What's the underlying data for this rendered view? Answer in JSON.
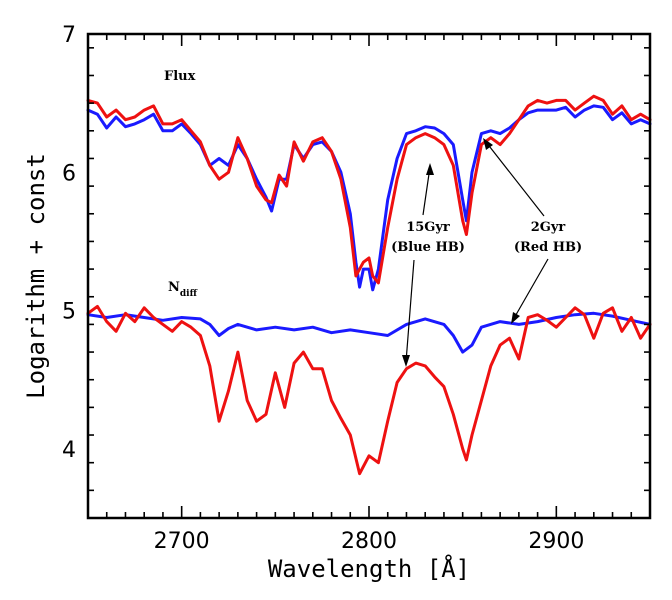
{
  "chart_data": {
    "type": "line",
    "title": "",
    "xlabel": "Wavelength [Å]",
    "ylabel": "Logarithm + const",
    "xlim": [
      2650,
      2950
    ],
    "ylim": [
      3.5,
      7
    ],
    "x_ticks": [
      2700,
      2800,
      2900
    ],
    "x_tick_labels": [
      "2700",
      "2800",
      "2900"
    ],
    "y_ticks": [
      4,
      5,
      6,
      7
    ],
    "y_tick_labels": [
      "4",
      "5",
      "6",
      "7"
    ],
    "grid": false,
    "legend": "none",
    "colors": {
      "blue": "#1a1aff",
      "red": "#ee1111"
    },
    "annotations": {
      "flux": "Flux",
      "ndiff_base": "N",
      "ndiff_sub": "diff",
      "gyr15_line1": "15Gyr",
      "gyr15_line2": "(Blue HB)",
      "gyr2_line1": "2Gyr",
      "gyr2_line2": "(Red HB)"
    },
    "series": [
      {
        "group": "Flux",
        "color": "blue",
        "x": [
          2650,
          2655,
          2660,
          2665,
          2670,
          2675,
          2680,
          2685,
          2690,
          2695,
          2700,
          2705,
          2710,
          2715,
          2720,
          2725,
          2730,
          2735,
          2740,
          2745,
          2748,
          2752,
          2756,
          2760,
          2765,
          2770,
          2775,
          2780,
          2785,
          2790,
          2793,
          2795,
          2797,
          2800,
          2802,
          2805,
          2810,
          2815,
          2820,
          2825,
          2830,
          2835,
          2840,
          2845,
          2850,
          2852,
          2855,
          2860,
          2865,
          2870,
          2875,
          2880,
          2885,
          2890,
          2895,
          2900,
          2905,
          2910,
          2915,
          2920,
          2925,
          2930,
          2935,
          2940,
          2945,
          2950
        ],
        "y": [
          6.45,
          6.42,
          6.32,
          6.4,
          6.33,
          6.35,
          6.38,
          6.42,
          6.3,
          6.3,
          6.35,
          6.28,
          6.2,
          6.05,
          6.1,
          6.05,
          6.2,
          6.1,
          5.95,
          5.82,
          5.72,
          5.95,
          5.95,
          6.2,
          6.1,
          6.2,
          6.22,
          6.15,
          6.0,
          5.7,
          5.35,
          5.17,
          5.3,
          5.3,
          5.15,
          5.3,
          5.8,
          6.1,
          6.28,
          6.3,
          6.33,
          6.32,
          6.28,
          6.2,
          5.8,
          5.65,
          6.0,
          6.28,
          6.3,
          6.28,
          6.32,
          6.38,
          6.43,
          6.45,
          6.45,
          6.45,
          6.47,
          6.4,
          6.45,
          6.48,
          6.47,
          6.38,
          6.43,
          6.35,
          6.38,
          6.35
        ]
      },
      {
        "group": "Flux",
        "color": "red",
        "x": [
          2650,
          2655,
          2660,
          2665,
          2670,
          2675,
          2680,
          2685,
          2690,
          2695,
          2700,
          2705,
          2710,
          2715,
          2720,
          2725,
          2730,
          2735,
          2740,
          2745,
          2748,
          2752,
          2756,
          2760,
          2765,
          2770,
          2775,
          2780,
          2785,
          2790,
          2793,
          2795,
          2797,
          2800,
          2802,
          2805,
          2810,
          2815,
          2820,
          2825,
          2830,
          2835,
          2840,
          2845,
          2850,
          2852,
          2855,
          2860,
          2865,
          2870,
          2875,
          2880,
          2885,
          2890,
          2895,
          2900,
          2905,
          2910,
          2915,
          2920,
          2925,
          2930,
          2935,
          2940,
          2945,
          2950
        ],
        "y": [
          6.52,
          6.5,
          6.4,
          6.45,
          6.38,
          6.4,
          6.45,
          6.48,
          6.35,
          6.35,
          6.38,
          6.3,
          6.22,
          6.05,
          5.95,
          6.0,
          6.25,
          6.1,
          5.9,
          5.8,
          5.78,
          5.98,
          5.9,
          6.22,
          6.08,
          6.22,
          6.25,
          6.15,
          5.95,
          5.6,
          5.25,
          5.3,
          5.35,
          5.38,
          5.25,
          5.2,
          5.6,
          5.95,
          6.2,
          6.25,
          6.28,
          6.25,
          6.2,
          6.05,
          5.65,
          5.55,
          5.85,
          6.2,
          6.25,
          6.2,
          6.28,
          6.38,
          6.48,
          6.52,
          6.5,
          6.52,
          6.52,
          6.45,
          6.5,
          6.55,
          6.52,
          6.42,
          6.48,
          6.38,
          6.42,
          6.38
        ]
      },
      {
        "group": "N_diff",
        "color": "blue",
        "x": [
          2650,
          2660,
          2670,
          2680,
          2690,
          2700,
          2710,
          2715,
          2720,
          2725,
          2730,
          2740,
          2750,
          2760,
          2770,
          2780,
          2790,
          2800,
          2810,
          2820,
          2830,
          2840,
          2845,
          2850,
          2855,
          2860,
          2870,
          2880,
          2890,
          2900,
          2910,
          2920,
          2930,
          2940,
          2950
        ],
        "y": [
          4.97,
          4.95,
          4.97,
          4.95,
          4.93,
          4.95,
          4.94,
          4.9,
          4.82,
          4.87,
          4.9,
          4.86,
          4.88,
          4.86,
          4.88,
          4.84,
          4.86,
          4.84,
          4.82,
          4.9,
          4.94,
          4.9,
          4.82,
          4.7,
          4.75,
          4.88,
          4.92,
          4.9,
          4.92,
          4.95,
          4.97,
          4.98,
          4.96,
          4.93,
          4.9
        ]
      },
      {
        "group": "N_diff",
        "color": "red",
        "x": [
          2650,
          2655,
          2660,
          2665,
          2670,
          2675,
          2680,
          2685,
          2690,
          2695,
          2700,
          2705,
          2710,
          2715,
          2720,
          2725,
          2730,
          2735,
          2740,
          2745,
          2750,
          2755,
          2760,
          2765,
          2770,
          2775,
          2780,
          2785,
          2790,
          2795,
          2800,
          2805,
          2810,
          2815,
          2820,
          2825,
          2830,
          2835,
          2840,
          2845,
          2850,
          2852,
          2855,
          2860,
          2865,
          2870,
          2875,
          2880,
          2885,
          2890,
          2895,
          2900,
          2905,
          2910,
          2915,
          2920,
          2925,
          2930,
          2935,
          2940,
          2945,
          2950
        ],
        "y": [
          4.98,
          5.03,
          4.92,
          4.85,
          4.98,
          4.92,
          5.02,
          4.95,
          4.9,
          4.85,
          4.92,
          4.88,
          4.82,
          4.6,
          4.2,
          4.42,
          4.7,
          4.35,
          4.2,
          4.25,
          4.55,
          4.3,
          4.62,
          4.7,
          4.58,
          4.58,
          4.35,
          4.22,
          4.1,
          3.82,
          3.95,
          3.9,
          4.2,
          4.48,
          4.58,
          4.62,
          4.6,
          4.52,
          4.45,
          4.25,
          4.0,
          3.92,
          4.1,
          4.35,
          4.6,
          4.75,
          4.8,
          4.65,
          4.95,
          4.97,
          4.93,
          4.88,
          4.95,
          5.02,
          4.97,
          4.8,
          4.98,
          5.02,
          4.85,
          4.95,
          4.8,
          4.9
        ]
      }
    ]
  }
}
